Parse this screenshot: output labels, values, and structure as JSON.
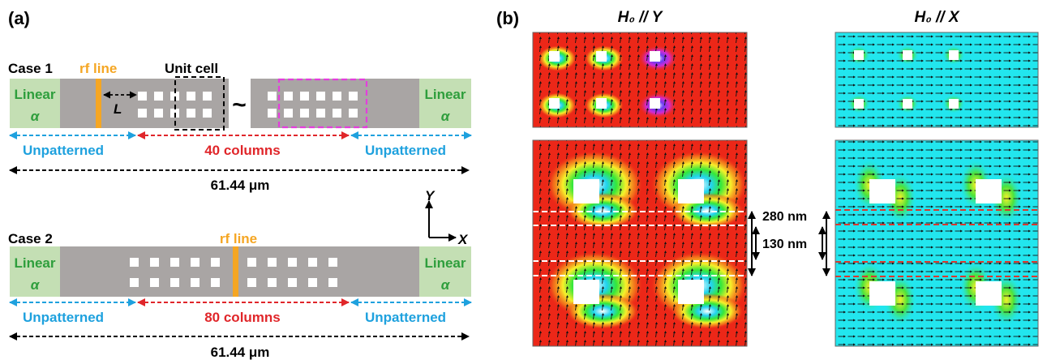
{
  "panel_a": {
    "label": "(a)",
    "case1": {
      "title": "Case 1",
      "rf_line": "rf line",
      "unit_cell": "Unit cell",
      "length_symbol": "L",
      "tilde": "~",
      "left_region": {
        "line1": "Linear",
        "line2": "α"
      },
      "right_region": {
        "line1": "Linear",
        "line2": "α"
      },
      "unpatterned_left": "Unpatterned",
      "columns": "40 columns",
      "unpatterned_right": "Unpatterned",
      "total_length": "61.44 μm"
    },
    "case2": {
      "title": "Case 2",
      "rf_line": "rf line",
      "left_region": {
        "line1": "Linear",
        "line2": "α"
      },
      "right_region": {
        "line1": "Linear",
        "line2": "α"
      },
      "unpatterned_left": "Unpatterned",
      "columns": "80 columns",
      "unpatterned_right": "Unpatterned",
      "total_length": "61.44 μm"
    },
    "axes": {
      "y": "Y",
      "x": "X"
    }
  },
  "panel_b": {
    "label": "(b)",
    "left_title": "H₀ // Y",
    "right_title": "H₀ // X",
    "dim_outer": "280 nm",
    "dim_inner": "130 nm"
  },
  "colors": {
    "bar_gray": "#a9a5a4",
    "linear_green": "#c4dfb4",
    "linear_text": "#2e9e3c",
    "rf_orange": "#f5a623",
    "unpatterned_blue": "#1ea1de",
    "columns_red": "#e0262a",
    "magenta_box": "#e33fdc",
    "map_red": "#ec2718",
    "map_cyan": "#22e6ee"
  }
}
